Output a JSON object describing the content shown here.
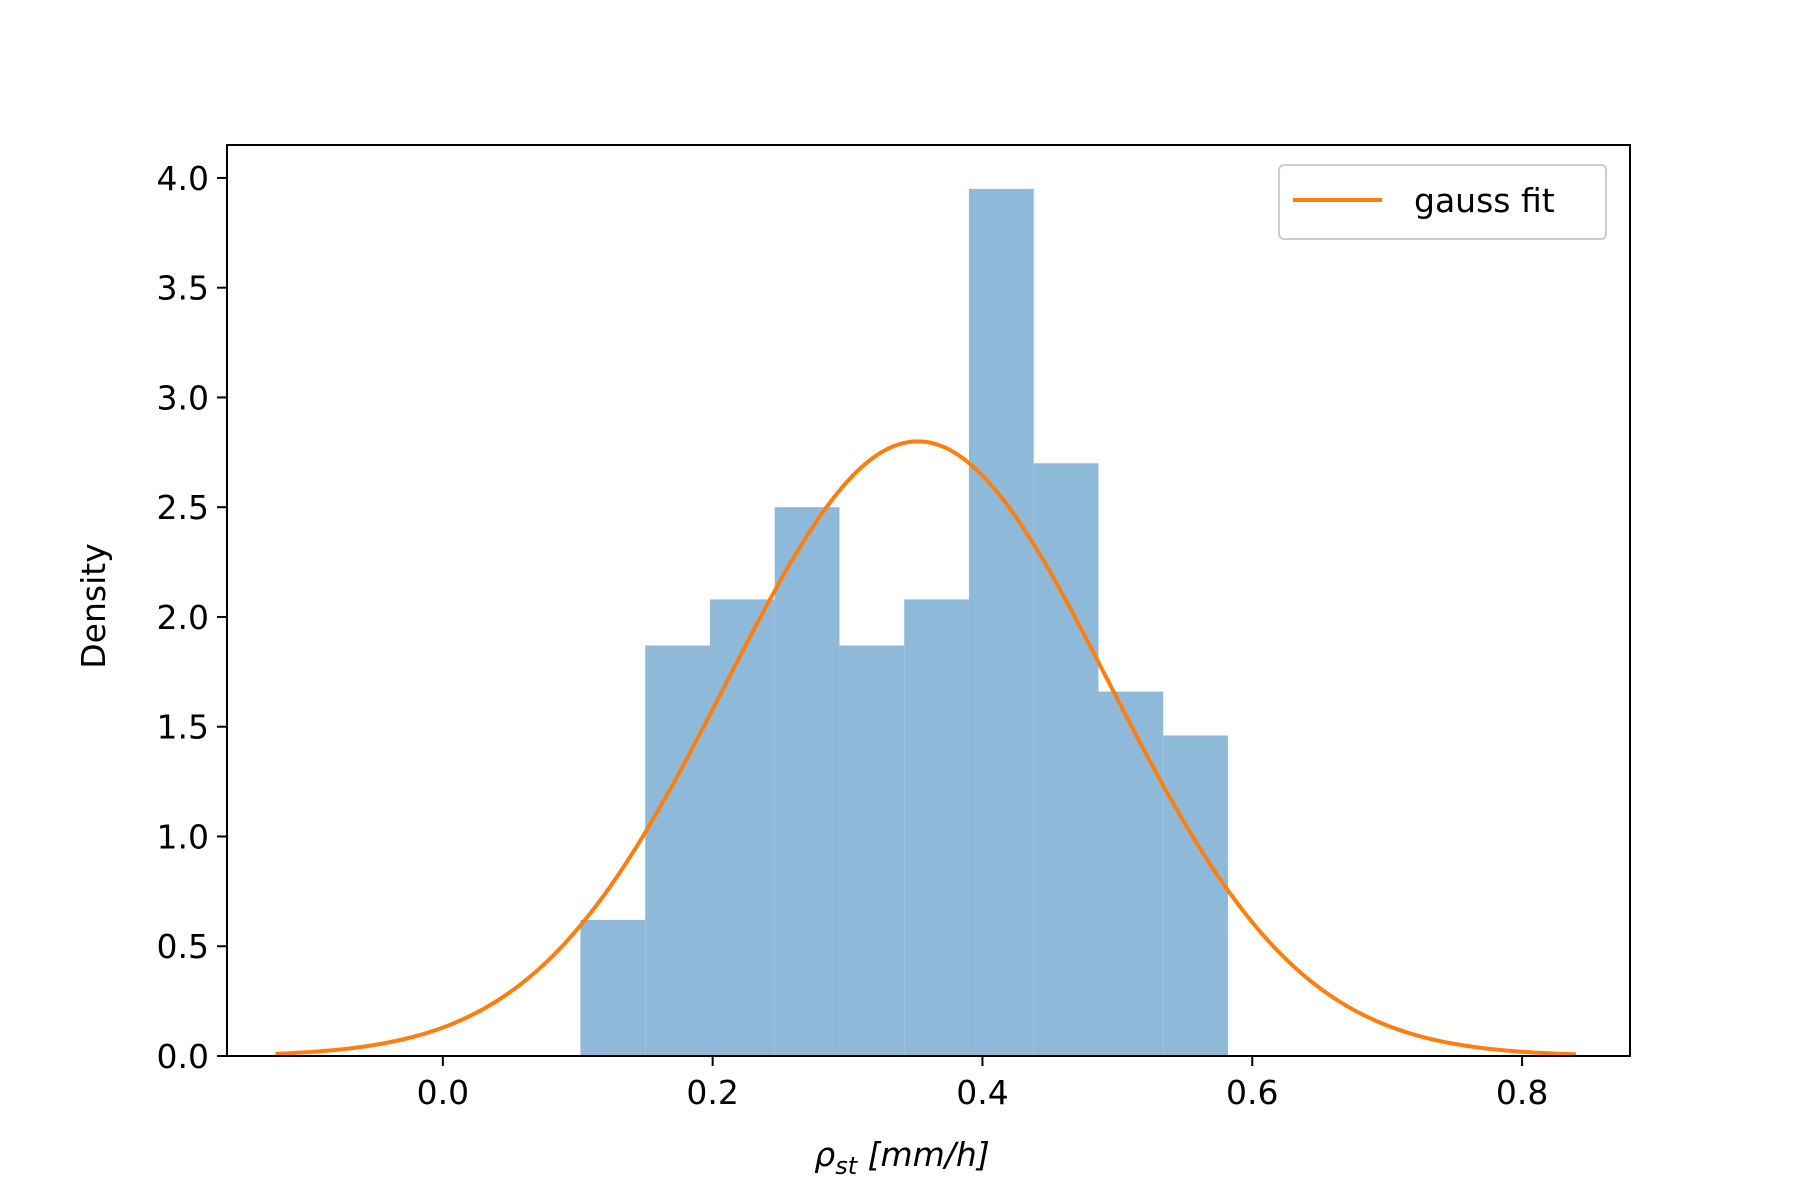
{
  "chart_data": {
    "type": "bar",
    "xlabel": "ρst [mm/h]",
    "xlabel_main": "ρ",
    "xlabel_sub": "st",
    "xlabel_unit": " [mm/h]",
    "ylabel": "Density",
    "xlim": [
      -0.16,
      0.88
    ],
    "ylim": [
      0,
      4.15
    ],
    "xticks": [
      0.0,
      0.2,
      0.4,
      0.6,
      0.8
    ],
    "xtick_labels": [
      "0.0",
      "0.2",
      "0.4",
      "0.6",
      "0.8"
    ],
    "yticks": [
      0.0,
      0.5,
      1.0,
      1.5,
      2.0,
      2.5,
      3.0,
      3.5,
      4.0
    ],
    "ytick_labels": [
      "0.0",
      "0.5",
      "1.0",
      "1.5",
      "2.0",
      "2.5",
      "3.0",
      "3.5",
      "4.0"
    ],
    "grid": false,
    "legend_position": "top-right",
    "histogram": {
      "bin_edges": [
        0.102,
        0.15,
        0.198,
        0.246,
        0.294,
        0.342,
        0.39,
        0.438,
        0.486,
        0.534,
        0.582
      ],
      "values": [
        0.62,
        1.87,
        2.08,
        2.5,
        1.87,
        2.08,
        3.95,
        2.7,
        1.66,
        1.46
      ],
      "color": "#8fb9d9"
    },
    "series": [
      {
        "name": "gauss fit",
        "type": "line",
        "color": "#ff7f0e",
        "function": "gaussian",
        "mean": 0.352,
        "peak_density": 2.8,
        "sigma": 0.142,
        "x_range": [
          -0.124,
          0.84
        ]
      }
    ]
  }
}
